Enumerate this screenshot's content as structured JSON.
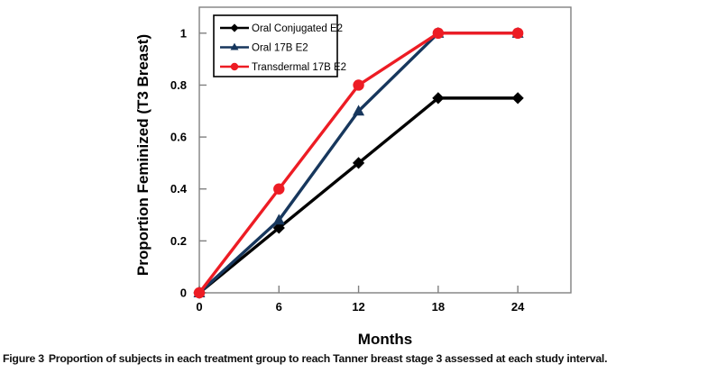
{
  "figure": {
    "caption_label": "Figure 3",
    "caption_text": "Proportion of subjects in each treatment group to reach Tanner breast stage 3 assessed at each study interval."
  },
  "chart_data": {
    "type": "line",
    "title": "",
    "x": [
      0,
      6,
      12,
      18,
      24
    ],
    "series": [
      {
        "name": "Oral Conjugated E2",
        "color": "#000000",
        "marker": "diamond",
        "values": [
          0,
          0.25,
          0.5,
          0.75,
          0.75
        ]
      },
      {
        "name": "Oral 17B E2",
        "color": "#17375D",
        "marker": "triangle",
        "values": [
          0,
          0.28,
          0.7,
          1,
          1
        ]
      },
      {
        "name": "Transdermal 17B E2",
        "color": "#ED1C24",
        "marker": "circle",
        "values": [
          0,
          0.4,
          0.8,
          1,
          1
        ]
      }
    ],
    "xlabel": "Months",
    "ylabel": "Proportion Feminized (T3 Breast)",
    "xticks": [
      0,
      6,
      12,
      18,
      24
    ],
    "xtick_labels": [
      "0",
      "6",
      "12",
      "18",
      "24"
    ],
    "yticks": [
      0,
      0.2,
      0.4,
      0.6,
      0.8,
      1
    ],
    "ytick_labels": [
      "0",
      "0.2",
      "0.4",
      "0.6",
      "0.8",
      "1"
    ],
    "xlim": [
      0,
      28
    ],
    "ylim": [
      0,
      1.1
    ],
    "grid": false,
    "legend_position": "top-left-inside",
    "legend_border_color": "#000000",
    "axis_color": "#808080",
    "background_color": "#ffffff"
  }
}
